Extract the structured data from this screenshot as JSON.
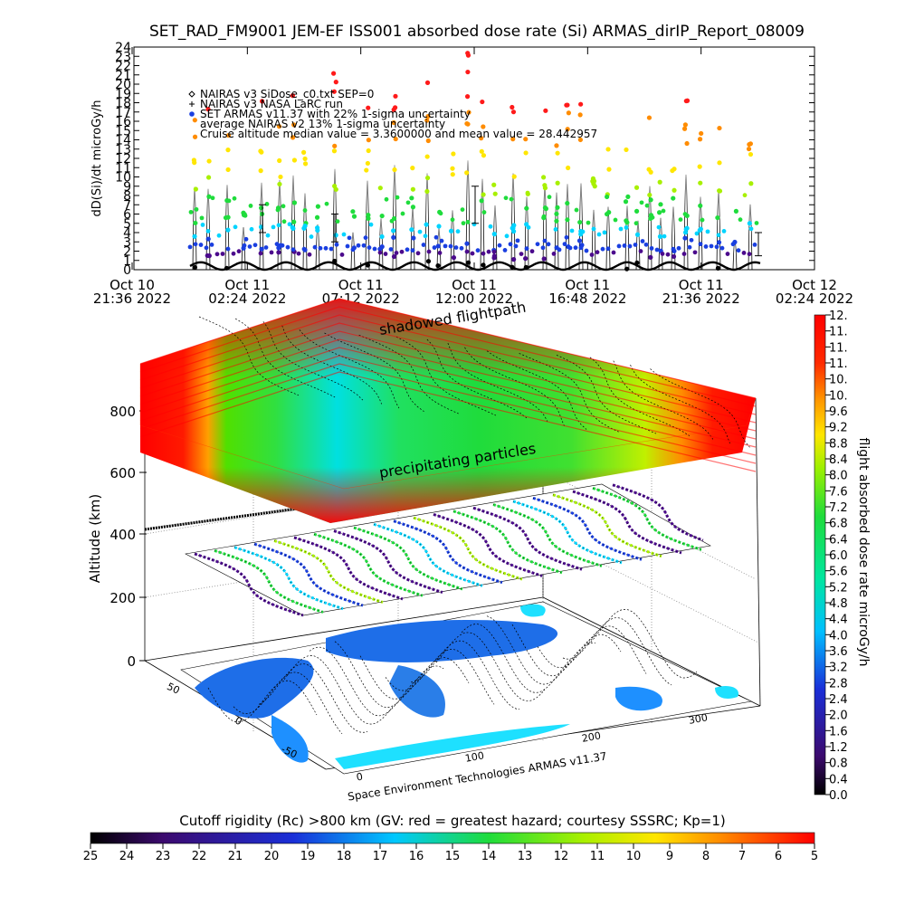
{
  "title": "SET_RAD_FM9001  JEM-EF ISS001 absorbed dose rate (Si) ARMAS_dirIP_Report_08009",
  "chart_data": [
    {
      "type": "scatter",
      "title": "SET_RAD_FM9001  JEM-EF ISS001 absorbed dose rate (Si) ARMAS_dirIP_Report_08009",
      "ylabel": "dD(Si)/dt microGy/h",
      "xlabel": "",
      "ylim": [
        0,
        24
      ],
      "yticks": [
        "0",
        "1",
        "2",
        "3",
        "4",
        "5",
        "6",
        "7",
        "8",
        "9",
        "10",
        "11",
        "12",
        "13",
        "14",
        "15",
        "16",
        "17",
        "18",
        "19",
        "20",
        "21",
        "22",
        "23",
        "24"
      ],
      "xticks": [
        {
          "line1": "Oct 10",
          "line2": "21:36 2022"
        },
        {
          "line1": "Oct 11",
          "line2": "02:24 2022"
        },
        {
          "line1": "Oct 11",
          "line2": "07:12 2022"
        },
        {
          "line1": "Oct 11",
          "line2": "12:00 2022"
        },
        {
          "line1": "Oct 11",
          "line2": "16:48 2022"
        },
        {
          "line1": "Oct 11",
          "line2": "21:36 2022"
        },
        {
          "line1": "Oct 12",
          "line2": "02:24 2022"
        }
      ],
      "legend": [
        {
          "marker": "diamond",
          "color": "#000000",
          "text": "NAIRAS v3 SiDose_c0.txt SEP=0"
        },
        {
          "marker": "plus",
          "color": "#000000",
          "text": "NAIRAS v3 NASA LaRC run"
        },
        {
          "marker": "dot",
          "color": "#1a3fe0",
          "text": "SET ARMAS v11.37 with 22% 1-sigma uncertainty"
        },
        {
          "marker": "none",
          "color": "#000000",
          "text": "average NAIRAS v2 13% 1-sigma uncertainty"
        },
        {
          "marker": "none",
          "color": "#000000",
          "text": "Cruise altitude median value = 3.3600000 and mean value = 28.442957"
        }
      ],
      "legend_position": "top-left",
      "x_range_samples": [
        {
          "t": "Oct 11 00:00 2022",
          "armas": 2
        },
        {
          "t": "Oct 11 02:00 2022",
          "armas": 6
        },
        {
          "t": "Oct 11 04:00 2022",
          "armas": 3
        },
        {
          "t": "Oct 11 06:00 2022",
          "armas": 7
        },
        {
          "t": "Oct 11 08:00 2022",
          "armas": 4
        },
        {
          "t": "Oct 11 10:00 2022",
          "armas": 6
        },
        {
          "t": "Oct 11 12:00 2022",
          "armas": 7
        },
        {
          "t": "Oct 11 14:00 2022",
          "armas": 8
        },
        {
          "t": "Oct 11 16:00 2022",
          "armas": 10
        },
        {
          "t": "Oct 11 18:00 2022",
          "armas": 9
        },
        {
          "t": "Oct 11 20:00 2022",
          "armas": 8
        },
        {
          "t": "Oct 11 22:00 2022",
          "armas": 12
        }
      ]
    },
    {
      "type": "heatmap",
      "ylabel": "Altitude (km)",
      "yticks": [
        "0",
        "200",
        "400",
        "600",
        "800"
      ],
      "lat_ticks": [
        "50",
        "0",
        "-50"
      ],
      "lon_ticks": [
        "0",
        "100",
        "200",
        "300"
      ],
      "annotations": [
        "shadowed flightpath",
        "precipitating particles"
      ],
      "credit": "Space Environment Technologies ARMAS v11.37",
      "colorbar": {
        "label": "flight absorbed dose rate microGy/h",
        "ticks": [
          "0.0",
          "0.4",
          "0.8",
          "1.2",
          "1.6",
          "2.0",
          "2.4",
          "2.8",
          "3.2",
          "3.6",
          "4.0",
          "4.4",
          "4.8",
          "5.2",
          "5.6",
          "6.0",
          "6.4",
          "6.8",
          "7.2",
          "7.6",
          "8.0",
          "8.4",
          "8.8",
          "9.2",
          "9.6",
          "10.",
          "10.",
          "11.",
          "11.",
          "11.",
          "12."
        ]
      }
    },
    {
      "type": "heatmap",
      "title": "Cutoff rigidity (Rc) >800 km (GV: red = greatest hazard; courtesy SSSRC; Kp=1)",
      "colorbar_ticks": [
        "25",
        "24",
        "23",
        "22",
        "21",
        "20",
        "19",
        "18",
        "17",
        "16",
        "15",
        "14",
        "13",
        "12",
        "11",
        "10",
        "9",
        "8",
        "7",
        "6",
        "5"
      ]
    }
  ],
  "colors": {
    "black": "#000000",
    "purple": "#4b0a8c",
    "blue": "#1a3fe0",
    "cyan": "#00d4ff",
    "green": "#1fdc3c",
    "lime": "#a8f000",
    "yellow": "#ffe600",
    "orange": "#ff8c00",
    "red": "#ff1a1a"
  }
}
